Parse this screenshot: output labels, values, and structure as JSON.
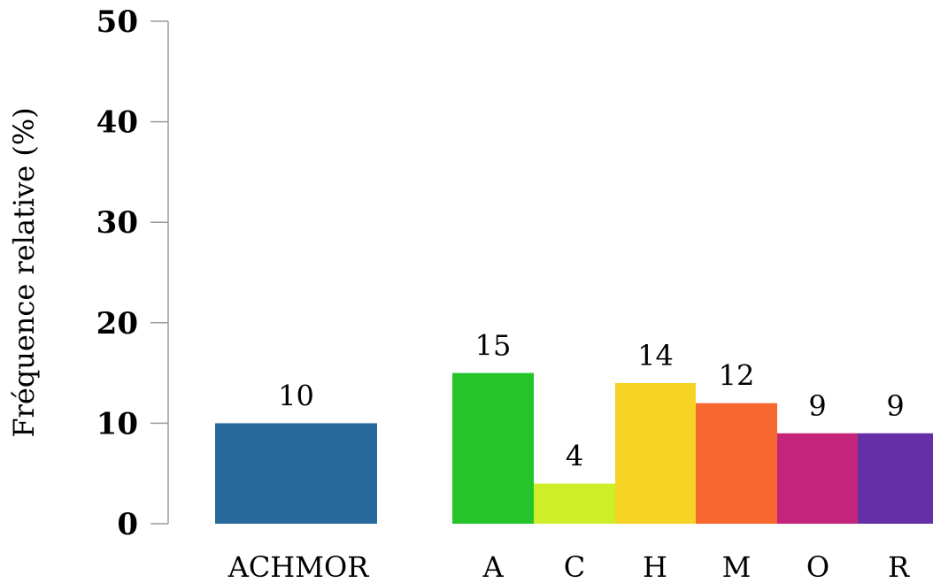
{
  "chart_data": {
    "type": "bar",
    "title": "",
    "xlabel": "",
    "ylabel": "Fréquence relative (%)",
    "ylim": [
      0,
      50
    ],
    "yticks": [
      0,
      10,
      20,
      30,
      40,
      50
    ],
    "grid": false,
    "legend": "none",
    "categories": [
      "ACHMOR",
      "A",
      "C",
      "H",
      "M",
      "O",
      "R"
    ],
    "values": [
      10,
      15,
      4,
      14,
      12,
      9,
      9
    ],
    "data_labels": [
      "10",
      "15",
      "4",
      "14",
      "12",
      "9",
      "9"
    ],
    "colors": [
      "#276a9c",
      "#25c42a",
      "#cfee2a",
      "#f5d224",
      "#f6682f",
      "#c4257b",
      "#6530a7"
    ]
  }
}
